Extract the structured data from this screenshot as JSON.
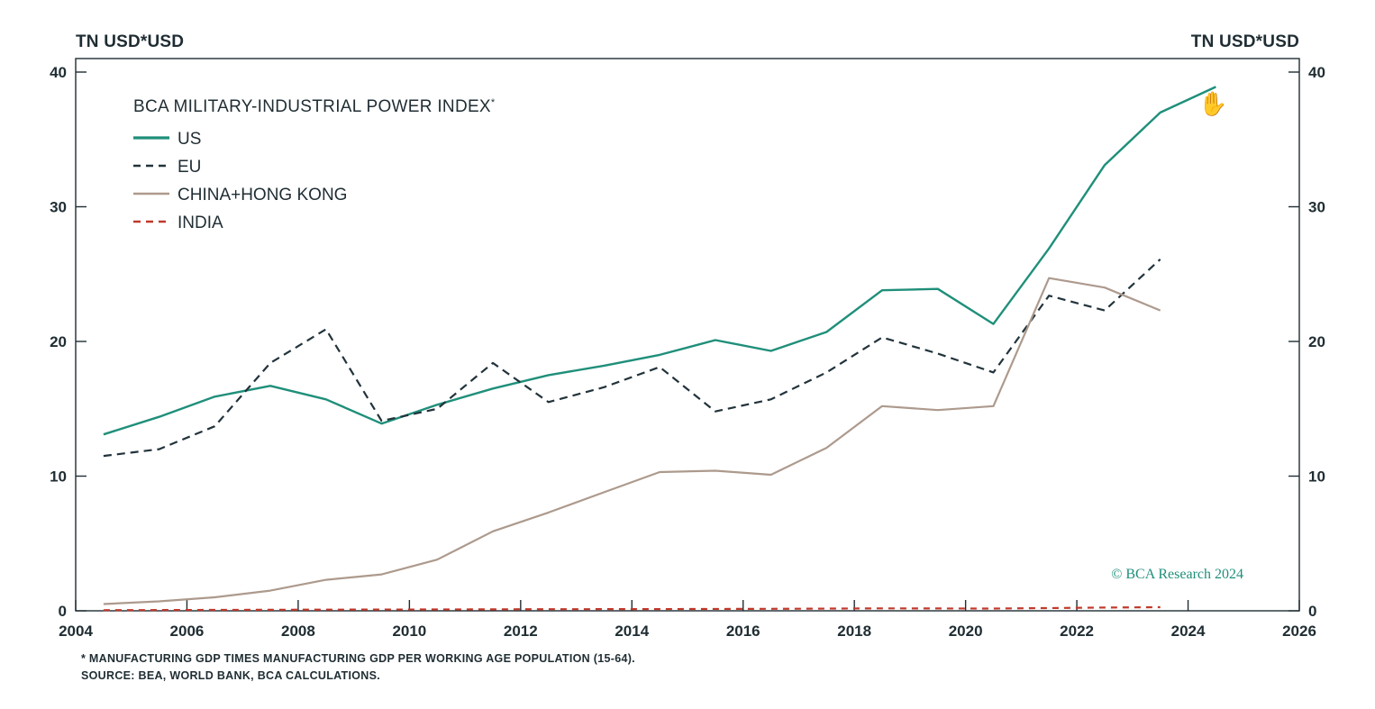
{
  "chart_data": {
    "type": "line",
    "title": "BCA MILITARY-INDUSTRIAL POWER INDEX",
    "title_marker": "*",
    "left_axis_label": "TN USD*USD",
    "right_axis_label": "TN USD*USD",
    "xlim": [
      2004,
      2026
    ],
    "ylim": [
      0,
      40
    ],
    "x_ticks": [
      "2004",
      "2006",
      "2008",
      "2010",
      "2012",
      "2014",
      "2016",
      "2018",
      "2020",
      "2022",
      "2024",
      "2026"
    ],
    "y_ticks": [
      "0",
      "10",
      "20",
      "30",
      "40"
    ],
    "legend_position": "top-left",
    "grid": false,
    "series": [
      {
        "name": "US",
        "color": "#1f8f7a",
        "style": "solid",
        "x": [
          2004.5,
          2005.5,
          2006.5,
          2007.5,
          2008.5,
          2009.5,
          2010.5,
          2011.5,
          2012.5,
          2013.5,
          2014.5,
          2015.5,
          2016.5,
          2017.5,
          2018.5,
          2019.5,
          2020.5,
          2021.5,
          2022.5,
          2023.5,
          2024.5
        ],
        "y": [
          13.1,
          14.4,
          15.9,
          16.7,
          15.7,
          13.9,
          15.3,
          16.5,
          17.5,
          18.2,
          19.0,
          20.1,
          19.3,
          20.7,
          23.8,
          23.9,
          21.3,
          26.9,
          33.1,
          37.0,
          38.9
        ]
      },
      {
        "name": "EU",
        "color": "#22333b",
        "style": "dashed",
        "x": [
          2004.5,
          2005.5,
          2006.5,
          2007.5,
          2008.5,
          2009.5,
          2010.5,
          2011.5,
          2012.5,
          2013.5,
          2014.5,
          2015.5,
          2016.5,
          2017.5,
          2018.5,
          2019.5,
          2020.5,
          2021.5,
          2022.5,
          2023.5
        ],
        "y": [
          11.5,
          12.0,
          13.7,
          18.4,
          20.9,
          14.1,
          15.0,
          18.4,
          15.5,
          16.6,
          18.1,
          14.8,
          15.7,
          17.7,
          20.3,
          19.1,
          17.7,
          23.4,
          22.3,
          26.1
        ]
      },
      {
        "name": "CHINA+HONG KONG",
        "color": "#ad9a8d",
        "style": "solid",
        "x": [
          2004.5,
          2005.5,
          2006.5,
          2007.5,
          2008.5,
          2009.5,
          2010.5,
          2011.5,
          2012.5,
          2013.5,
          2014.5,
          2015.5,
          2016.5,
          2017.5,
          2018.5,
          2019.5,
          2020.5,
          2021.5,
          2022.5,
          2023.5
        ],
        "y": [
          0.5,
          0.7,
          1.0,
          1.5,
          2.3,
          2.7,
          3.8,
          5.9,
          7.3,
          8.8,
          10.3,
          10.4,
          10.1,
          12.1,
          15.2,
          14.9,
          15.2,
          24.7,
          24.0,
          22.3
        ]
      },
      {
        "name": "INDIA",
        "color": "#c0392b",
        "style": "dashed",
        "x": [
          2004.5,
          2006.5,
          2008.5,
          2010.5,
          2012.5,
          2014.5,
          2016.5,
          2018.5,
          2020.5,
          2022.5,
          2023.5
        ],
        "y": [
          0.05,
          0.07,
          0.09,
          0.1,
          0.12,
          0.13,
          0.15,
          0.18,
          0.17,
          0.24,
          0.27
        ]
      }
    ],
    "watermark": "© BCA Research 2024"
  },
  "footnote": "*  MANUFACTURING GDP TIMES MANUFACTURING GDP PER WORKING AGE POPULATION (15-64).",
  "source": "SOURCE: BEA, WORLD BANK, BCA CALCULATIONS.",
  "cursor_icon": "hand-grab-icon"
}
